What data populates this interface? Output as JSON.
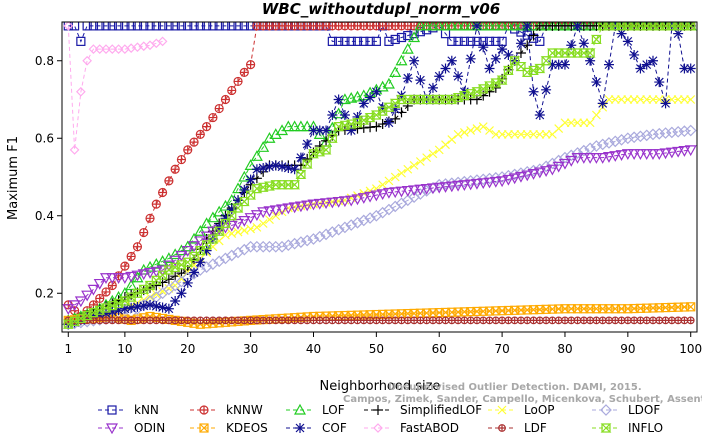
{
  "chart_data": {
    "type": "line",
    "title": "WBC_withoutdupl_norm_v06",
    "xlabel": "Neighborhood size",
    "ylabel": "Maximum F1",
    "xlim": [
      0,
      101
    ],
    "ylim": [
      0.1,
      0.9
    ],
    "x_ticks": [
      1,
      10,
      20,
      30,
      40,
      50,
      60,
      70,
      80,
      90,
      100
    ],
    "y_ticks": [
      0.2,
      0.4,
      0.6,
      0.8
    ],
    "x_tick_labels": [
      "1",
      "10",
      "20",
      "30",
      "40",
      "50",
      "60",
      "70",
      "80",
      "90",
      "100"
    ],
    "y_tick_labels": [
      "0.2",
      "0.4",
      "0.6",
      "0.8"
    ],
    "grid": false,
    "legend_position": "bottom",
    "credit_lines": [
      "Unsupervised Outlier Detection. DAMI, 2015.",
      "Campos, Zimek, Sander, Campello, Micenkova, Schubert, Assent, Houle"
    ],
    "series": [
      {
        "name": "kNN",
        "color": "#1a1aa6",
        "marker": "square",
        "anchors": [
          [
            1,
            0.89
          ],
          [
            2,
            0.89
          ],
          [
            3,
            0.85
          ],
          [
            4,
            0.89
          ],
          [
            42,
            0.89
          ],
          [
            43,
            0.85
          ],
          [
            50,
            0.85
          ],
          [
            51,
            0.89
          ],
          [
            52,
            0.85
          ],
          [
            60,
            0.89
          ],
          [
            62,
            0.85
          ],
          [
            70,
            0.85
          ],
          [
            71,
            0.89
          ],
          [
            76,
            0.85
          ],
          [
            77,
            0.89
          ],
          [
            100,
            0.89
          ]
        ]
      },
      {
        "name": "kNNW",
        "color": "#cc3030",
        "marker": "circle-plus",
        "anchors": [
          [
            1,
            0.17
          ],
          [
            3,
            0.14
          ],
          [
            5,
            0.17
          ],
          [
            8,
            0.22
          ],
          [
            10,
            0.27
          ],
          [
            12,
            0.32
          ],
          [
            15,
            0.43
          ],
          [
            18,
            0.52
          ],
          [
            20,
            0.57
          ],
          [
            23,
            0.63
          ],
          [
            26,
            0.7
          ],
          [
            29,
            0.77
          ],
          [
            30,
            0.79
          ],
          [
            31,
            0.89
          ],
          [
            100,
            0.89
          ]
        ]
      },
      {
        "name": "LOF",
        "color": "#22cc22",
        "marker": "triangle-up",
        "anchors": [
          [
            1,
            0.13
          ],
          [
            5,
            0.15
          ],
          [
            10,
            0.2
          ],
          [
            13,
            0.26
          ],
          [
            17,
            0.29
          ],
          [
            20,
            0.32
          ],
          [
            23,
            0.38
          ],
          [
            27,
            0.44
          ],
          [
            30,
            0.53
          ],
          [
            33,
            0.6
          ],
          [
            36,
            0.63
          ],
          [
            40,
            0.63
          ],
          [
            42,
            0.59
          ],
          [
            45,
            0.7
          ],
          [
            48,
            0.71
          ],
          [
            52,
            0.74
          ],
          [
            54,
            0.8
          ],
          [
            56,
            0.86
          ],
          [
            57,
            0.89
          ],
          [
            100,
            0.89
          ]
        ]
      },
      {
        "name": "SimplifiedLOF",
        "color": "#000000",
        "marker": "plus",
        "anchors": [
          [
            1,
            0.12
          ],
          [
            5,
            0.15
          ],
          [
            10,
            0.19
          ],
          [
            15,
            0.22
          ],
          [
            20,
            0.26
          ],
          [
            23,
            0.34
          ],
          [
            27,
            0.42
          ],
          [
            30,
            0.48
          ],
          [
            33,
            0.53
          ],
          [
            38,
            0.53
          ],
          [
            41,
            0.58
          ],
          [
            44,
            0.62
          ],
          [
            50,
            0.63
          ],
          [
            53,
            0.65
          ],
          [
            56,
            0.7
          ],
          [
            62,
            0.7
          ],
          [
            66,
            0.7
          ],
          [
            69,
            0.73
          ],
          [
            72,
            0.8
          ],
          [
            74,
            0.84
          ],
          [
            76,
            0.89
          ],
          [
            100,
            0.89
          ]
        ]
      },
      {
        "name": "LoOP",
        "color": "#ffff33",
        "marker": "x",
        "anchors": [
          [
            1,
            0.12
          ],
          [
            10,
            0.16
          ],
          [
            18,
            0.22
          ],
          [
            22,
            0.29
          ],
          [
            26,
            0.35
          ],
          [
            31,
            0.37
          ],
          [
            36,
            0.42
          ],
          [
            40,
            0.43
          ],
          [
            45,
            0.44
          ],
          [
            50,
            0.47
          ],
          [
            55,
            0.52
          ],
          [
            60,
            0.57
          ],
          [
            63,
            0.61
          ],
          [
            67,
            0.63
          ],
          [
            69,
            0.61
          ],
          [
            75,
            0.61
          ],
          [
            78,
            0.61
          ],
          [
            80,
            0.64
          ],
          [
            84,
            0.64
          ],
          [
            87,
            0.7
          ],
          [
            95,
            0.7
          ],
          [
            100,
            0.7
          ]
        ]
      },
      {
        "name": "LDOF",
        "color": "#aaaadd",
        "marker": "diamond",
        "anchors": [
          [
            1,
            0.12
          ],
          [
            10,
            0.14
          ],
          [
            14,
            0.18
          ],
          [
            18,
            0.22
          ],
          [
            22,
            0.26
          ],
          [
            26,
            0.29
          ],
          [
            30,
            0.32
          ],
          [
            35,
            0.32
          ],
          [
            40,
            0.34
          ],
          [
            45,
            0.37
          ],
          [
            50,
            0.4
          ],
          [
            55,
            0.44
          ],
          [
            60,
            0.48
          ],
          [
            65,
            0.49
          ],
          [
            70,
            0.5
          ],
          [
            76,
            0.52
          ],
          [
            80,
            0.55
          ],
          [
            85,
            0.58
          ],
          [
            90,
            0.6
          ],
          [
            94,
            0.61
          ],
          [
            100,
            0.62
          ]
        ]
      },
      {
        "name": "ODIN",
        "color": "#9933cc",
        "marker": "triangle-down",
        "anchors": [
          [
            1,
            0.16
          ],
          [
            3,
            0.18
          ],
          [
            5,
            0.21
          ],
          [
            7,
            0.24
          ],
          [
            10,
            0.24
          ],
          [
            13,
            0.25
          ],
          [
            16,
            0.26
          ],
          [
            20,
            0.31
          ],
          [
            24,
            0.36
          ],
          [
            28,
            0.38
          ],
          [
            32,
            0.41
          ],
          [
            36,
            0.42
          ],
          [
            40,
            0.43
          ],
          [
            46,
            0.44
          ],
          [
            52,
            0.46
          ],
          [
            58,
            0.47
          ],
          [
            64,
            0.48
          ],
          [
            70,
            0.49
          ],
          [
            78,
            0.52
          ],
          [
            82,
            0.55
          ],
          [
            86,
            0.55
          ],
          [
            90,
            0.56
          ],
          [
            95,
            0.56
          ],
          [
            100,
            0.57
          ]
        ]
      },
      {
        "name": "KDEOS",
        "color": "#ffaa00",
        "marker": "square-x",
        "anchors": [
          [
            1,
            0.13
          ],
          [
            8,
            0.14
          ],
          [
            11,
            0.13
          ],
          [
            14,
            0.14
          ],
          [
            18,
            0.13
          ],
          [
            22,
            0.12
          ],
          [
            30,
            0.13
          ],
          [
            40,
            0.14
          ],
          [
            50,
            0.145
          ],
          [
            60,
            0.15
          ],
          [
            70,
            0.155
          ],
          [
            80,
            0.16
          ],
          [
            90,
            0.16
          ],
          [
            100,
            0.165
          ]
        ]
      },
      {
        "name": "COF",
        "color": "#101090",
        "marker": "asterisk",
        "anchors": [
          [
            1,
            0.12
          ],
          [
            5,
            0.14
          ],
          [
            10,
            0.16
          ],
          [
            14,
            0.17
          ],
          [
            17,
            0.16
          ],
          [
            19,
            0.2
          ],
          [
            22,
            0.28
          ],
          [
            25,
            0.37
          ],
          [
            28,
            0.44
          ],
          [
            31,
            0.52
          ],
          [
            34,
            0.53
          ],
          [
            37,
            0.52
          ],
          [
            38,
            0.55
          ],
          [
            40,
            0.62
          ],
          [
            42,
            0.62
          ],
          [
            44,
            0.7
          ],
          [
            46,
            0.62
          ],
          [
            48,
            0.69
          ],
          [
            50,
            0.72
          ],
          [
            52,
            0.64
          ],
          [
            54,
            0.71
          ],
          [
            56,
            0.8
          ],
          [
            58,
            0.7
          ],
          [
            60,
            0.76
          ],
          [
            62,
            0.8
          ],
          [
            64,
            0.72
          ],
          [
            66,
            0.89
          ],
          [
            68,
            0.78
          ],
          [
            70,
            0.83
          ],
          [
            72,
            0.8
          ],
          [
            74,
            0.89
          ],
          [
            75,
            0.72
          ],
          [
            76,
            0.66
          ],
          [
            78,
            0.79
          ],
          [
            80,
            0.79
          ],
          [
            82,
            0.89
          ],
          [
            84,
            0.8
          ],
          [
            86,
            0.69
          ],
          [
            88,
            0.89
          ],
          [
            90,
            0.85
          ],
          [
            92,
            0.78
          ],
          [
            94,
            0.8
          ],
          [
            96,
            0.69
          ],
          [
            97,
            0.89
          ],
          [
            98,
            0.87
          ],
          [
            99,
            0.78
          ],
          [
            100,
            0.78
          ]
        ]
      },
      {
        "name": "FastABOD",
        "color": "#ffaaee",
        "marker": "diamond-small",
        "anchors": [
          [
            1,
            0.89
          ],
          [
            2,
            0.57
          ],
          [
            3,
            0.72
          ],
          [
            4,
            0.8
          ],
          [
            5,
            0.83
          ],
          [
            10,
            0.83
          ],
          [
            14,
            0.84
          ],
          [
            16,
            0.85
          ]
        ]
      },
      {
        "name": "LDF",
        "color": "#aa3030",
        "marker": "circle-plus-small",
        "anchors": [
          [
            1,
            0.13
          ],
          [
            20,
            0.13
          ],
          [
            31,
            0.13
          ],
          [
            100,
            0.13
          ]
        ]
      },
      {
        "name": "INFLO",
        "color": "#88dd22",
        "marker": "hourglass",
        "anchors": [
          [
            1,
            0.12
          ],
          [
            5,
            0.15
          ],
          [
            10,
            0.18
          ],
          [
            14,
            0.22
          ],
          [
            17,
            0.26
          ],
          [
            20,
            0.28
          ],
          [
            24,
            0.34
          ],
          [
            28,
            0.42
          ],
          [
            31,
            0.47
          ],
          [
            34,
            0.48
          ],
          [
            37,
            0.48
          ],
          [
            40,
            0.56
          ],
          [
            42,
            0.57
          ],
          [
            44,
            0.63
          ],
          [
            47,
            0.64
          ],
          [
            50,
            0.66
          ],
          [
            54,
            0.7
          ],
          [
            58,
            0.7
          ],
          [
            62,
            0.7
          ],
          [
            66,
            0.72
          ],
          [
            70,
            0.75
          ],
          [
            72,
            0.8
          ],
          [
            74,
            0.77
          ],
          [
            76,
            0.78
          ],
          [
            78,
            0.82
          ],
          [
            84,
            0.82
          ],
          [
            86,
            0.89
          ],
          [
            100,
            0.89
          ]
        ]
      }
    ]
  }
}
